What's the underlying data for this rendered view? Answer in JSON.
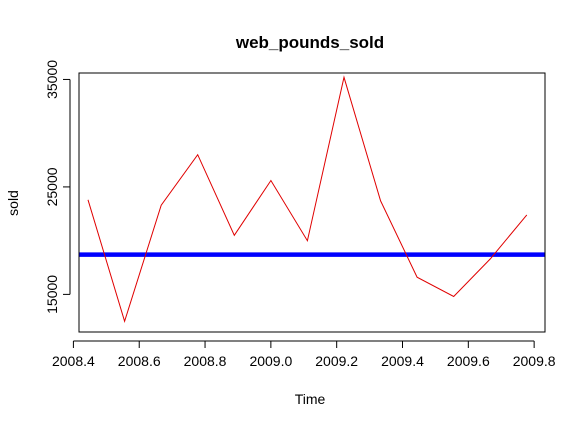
{
  "chart_data": {
    "type": "line",
    "title": "web_pounds_sold",
    "xlabel": "Time",
    "ylabel": "sold",
    "xlim": [
      2008.417,
      2009.833
    ],
    "ylim": [
      11500,
      35600
    ],
    "x_ticks": [
      2008.4,
      2008.6,
      2008.8,
      2009.0,
      2009.2,
      2009.4,
      2009.6,
      2009.8
    ],
    "x_tick_labels": [
      "2008.4",
      "2008.6",
      "2008.8",
      "2009.0",
      "2009.2",
      "2009.4",
      "2009.6",
      "2009.8"
    ],
    "y_ticks": [
      15000,
      25000,
      35000
    ],
    "y_tick_labels": [
      "15000",
      "25000",
      "35000"
    ],
    "grid": false,
    "series": [
      {
        "color": "#e00000",
        "x": [
          2008.4444,
          2008.5556,
          2008.6667,
          2008.7778,
          2008.8889,
          2009.0,
          2009.1111,
          2009.2222,
          2009.3333,
          2009.4444,
          2009.5556,
          2009.6667,
          2009.7778
        ],
        "values": [
          23800,
          12500,
          23300,
          28000,
          20500,
          25600,
          20000,
          35200,
          23700,
          16600,
          14800,
          18300,
          22400
        ]
      }
    ],
    "reference_lines": [
      {
        "orientation": "horizontal",
        "value": 18700,
        "color": "#0000ff"
      }
    ]
  }
}
